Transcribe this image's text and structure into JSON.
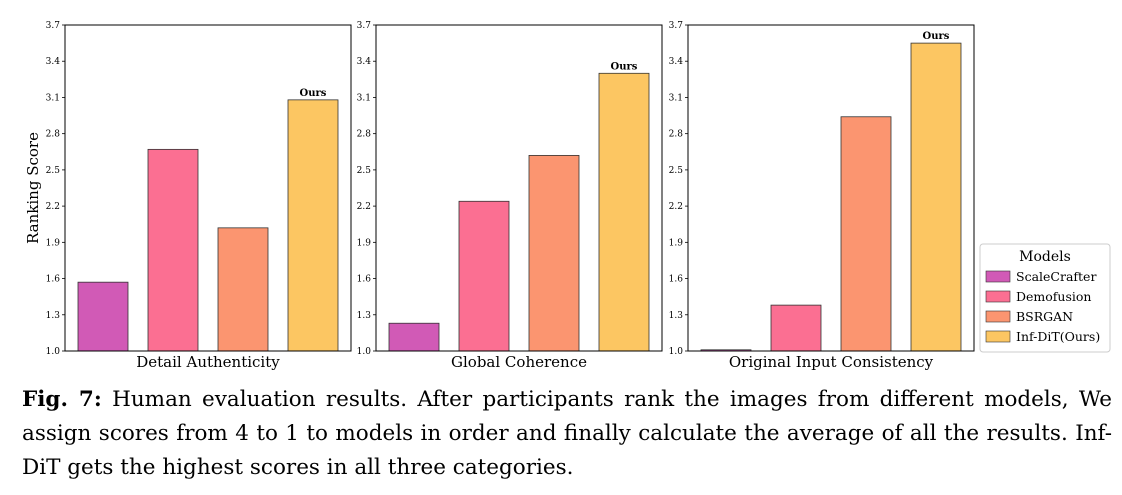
{
  "chart_data": {
    "type": "bar",
    "ylabel": "Ranking Score",
    "ylim": [
      1.0,
      3.7
    ],
    "yticks": [
      "1.0",
      "1.3",
      "1.6",
      "1.9",
      "2.2",
      "2.5",
      "2.8",
      "3.1",
      "3.4",
      "3.7"
    ],
    "series_names": [
      "ScaleCrafter",
      "Demofusion",
      "BSRGAN",
      "Inf-DiT(Ours)"
    ],
    "colors": [
      "#d15ab6",
      "#fb6f92",
      "#fb9570",
      "#fcc662"
    ],
    "highlight_label": "Ours",
    "panels": [
      {
        "xlabel": "Detail Authenticity",
        "values": [
          1.57,
          2.67,
          2.02,
          3.08
        ]
      },
      {
        "xlabel": "Global Coherence",
        "values": [
          1.23,
          2.24,
          2.62,
          3.3
        ]
      },
      {
        "xlabel": "Original Input Consistency",
        "values": [
          1.01,
          1.38,
          2.94,
          3.55
        ]
      }
    ],
    "legend": {
      "title": "Models",
      "position": "right",
      "entries": [
        "ScaleCrafter",
        "Demofusion",
        "BSRGAN",
        "Inf-DiT(Ours)"
      ]
    }
  },
  "caption": {
    "label": "Fig. 7:",
    "text": " Human evaluation results. After participants rank the images from different models, We assign scores from 4 to 1 to models in order and finally calculate the average of all the results. Inf-DiT gets the highest scores in all three categories."
  }
}
